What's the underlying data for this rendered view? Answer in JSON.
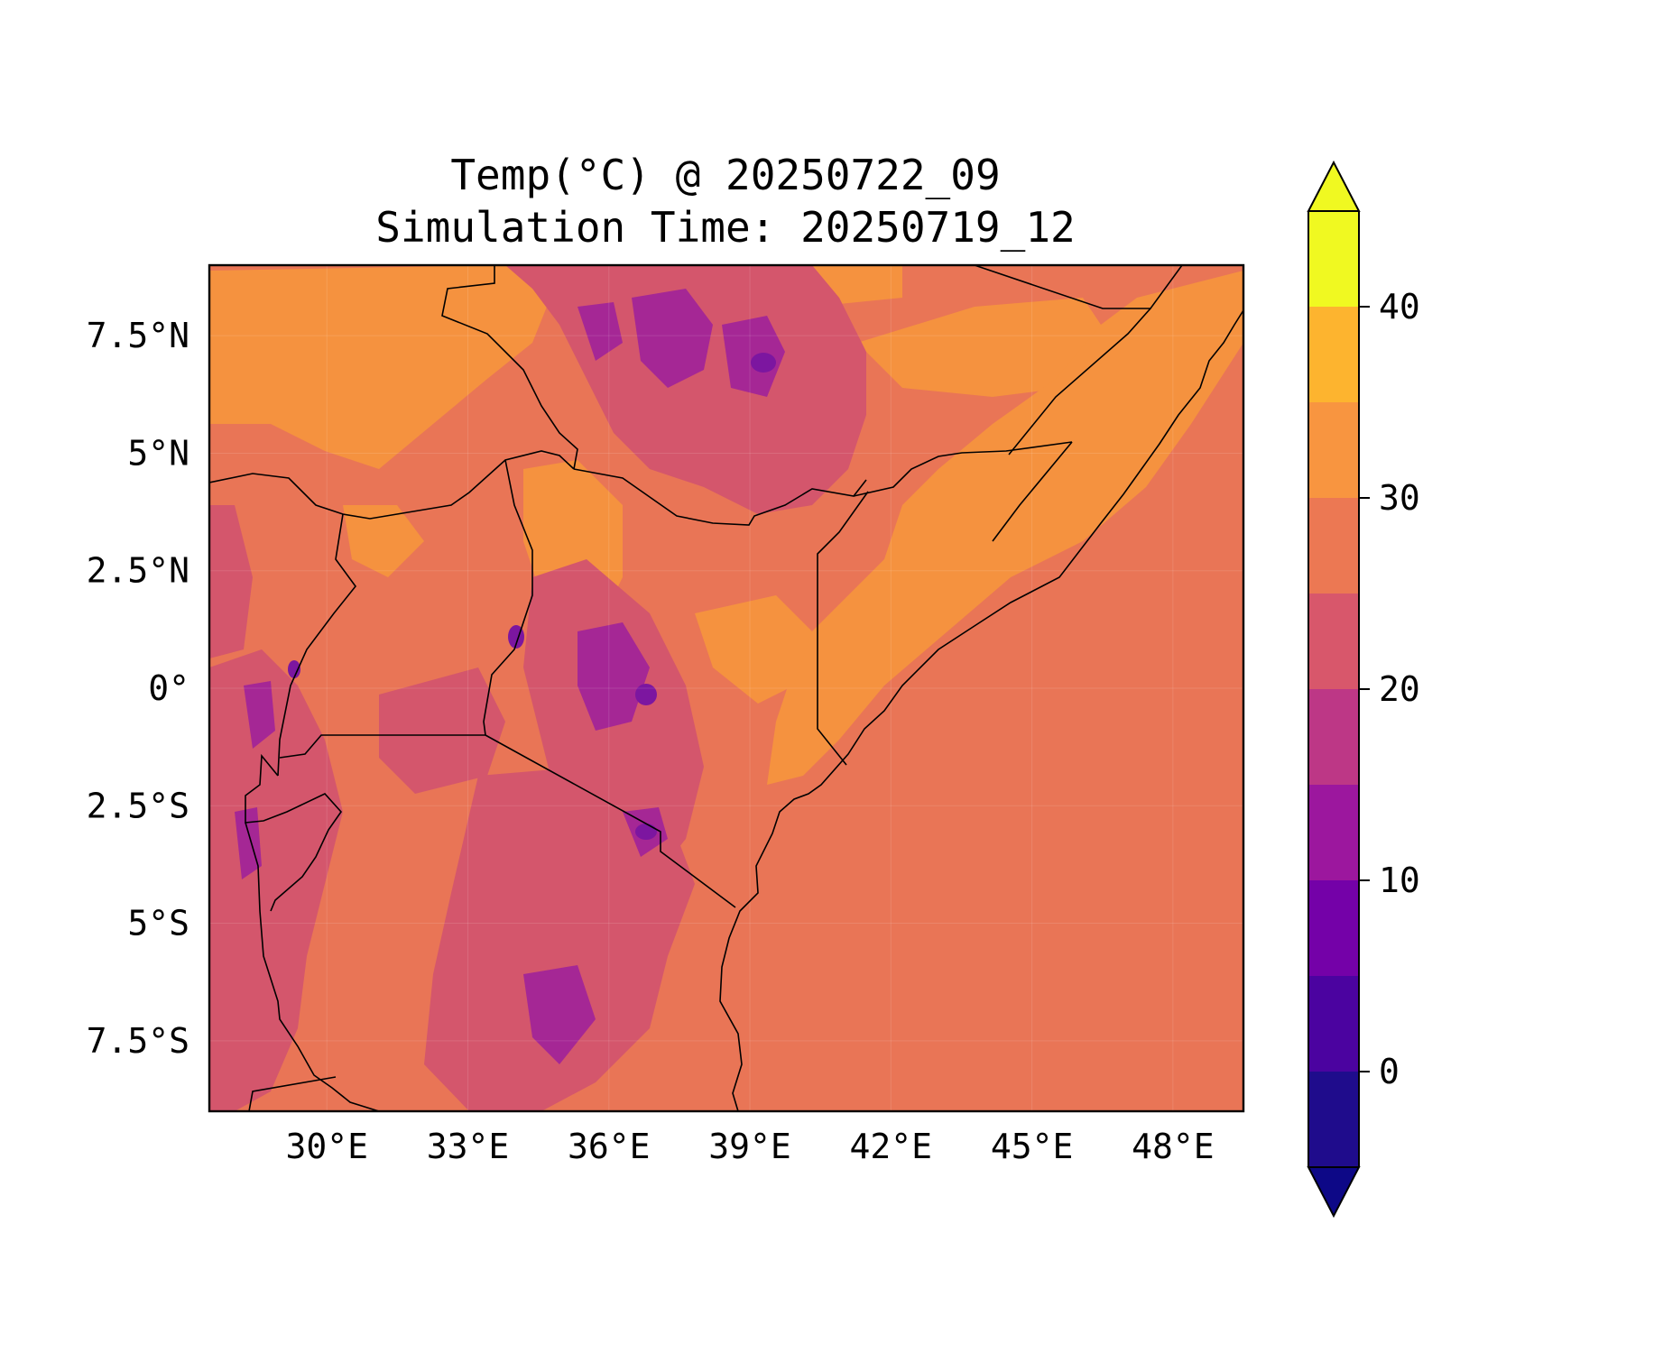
{
  "title": {
    "line1": "Temp(°C) @ 20250722_09",
    "line2": "Simulation Time: 20250719_12"
  },
  "chart_data": {
    "type": "filled-contour-map",
    "variable": "Temp(°C)",
    "valid_time": "20250722_09",
    "simulation_time": "20250719_12",
    "lon_range": [
      27.5,
      49.5
    ],
    "lat_range": [
      -9,
      9
    ],
    "x_ticks": [
      {
        "value": 30,
        "label": "30°E"
      },
      {
        "value": 33,
        "label": "33°E"
      },
      {
        "value": 36,
        "label": "36°E"
      },
      {
        "value": 39,
        "label": "39°E"
      },
      {
        "value": 42,
        "label": "42°E"
      },
      {
        "value": 45,
        "label": "45°E"
      },
      {
        "value": 48,
        "label": "48°E"
      }
    ],
    "y_ticks": [
      {
        "value": 7.5,
        "label": "7.5°N"
      },
      {
        "value": 5,
        "label": "5°N"
      },
      {
        "value": 2.5,
        "label": "2.5°N"
      },
      {
        "value": 0,
        "label": "0°"
      },
      {
        "value": -2.5,
        "label": "2.5°S"
      },
      {
        "value": -5,
        "label": "5°S"
      },
      {
        "value": -7.5,
        "label": "7.5°S"
      }
    ],
    "grid": true,
    "colorbar": {
      "levels": [
        -5,
        0,
        5,
        10,
        15,
        20,
        25,
        30,
        35,
        40,
        45
      ],
      "colors": [
        "#1f0c8c",
        "#4b03a0",
        "#7401a8",
        "#9c179e",
        "#bd3786",
        "#d8576b",
        "#ec7853",
        "#f89540",
        "#fdb42f",
        "#f0f921"
      ],
      "extend_min_color": "#0d0887",
      "extend_max_color": "#f0f921",
      "ticks": [
        {
          "value": 0,
          "label": "0"
        },
        {
          "value": 10,
          "label": "10"
        },
        {
          "value": 20,
          "label": "20"
        },
        {
          "value": 30,
          "label": "30"
        },
        {
          "value": 40,
          "label": "40"
        }
      ]
    },
    "background_color": "#e97556",
    "warm_color": "#f5923f",
    "cool_color": "#d4566c",
    "cold_color": "#a52795",
    "coldest_color": "#7c16a0",
    "border_color": "#000000"
  }
}
